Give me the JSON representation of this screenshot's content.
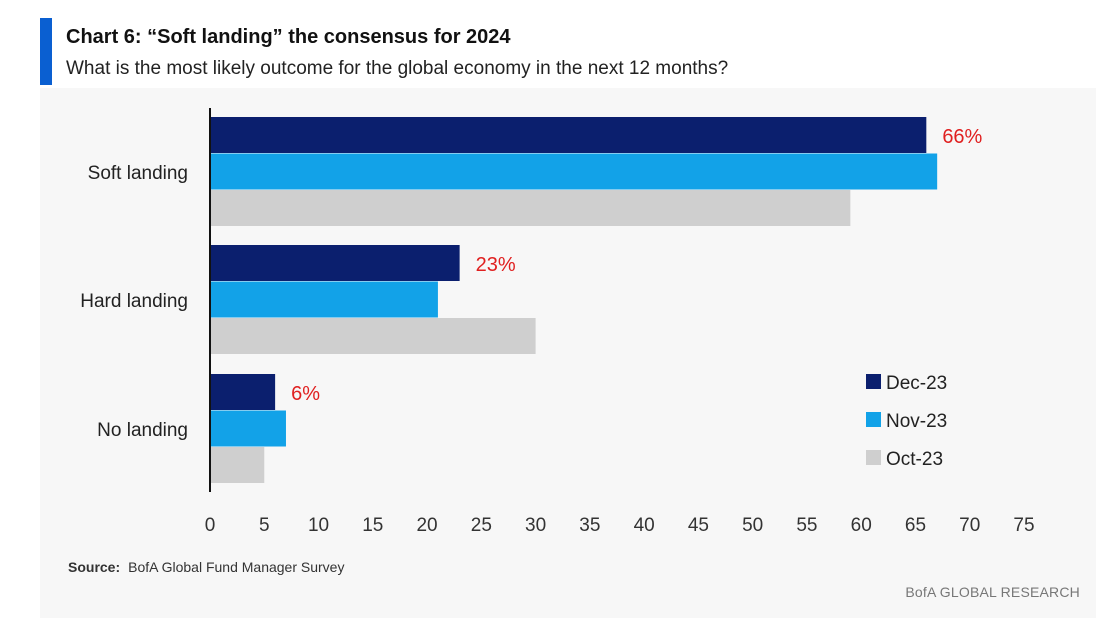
{
  "header": {
    "title": "Chart 6: “Soft landing” the consensus for 2024",
    "subtitle": "What is the most likely outcome for the global economy in the next 12 months?"
  },
  "footer": {
    "source_label": "Source:",
    "source_text": "BofA Global Fund Manager Survey",
    "brand": "BofA GLOBAL RESEARCH"
  },
  "colors": {
    "accent": "#0a5fd1",
    "Dec-23": "#0b1f6e",
    "Nov-23": "#12a2e8",
    "Oct-23": "#cfcfcf",
    "annotation": "#e02020"
  },
  "chart_data": {
    "type": "bar",
    "orientation": "horizontal",
    "categories": [
      "Soft landing",
      "Hard landing",
      "No landing"
    ],
    "series": [
      {
        "name": "Dec-23",
        "values": [
          66,
          23,
          6
        ]
      },
      {
        "name": "Nov-23",
        "values": [
          67,
          21,
          7
        ]
      },
      {
        "name": "Oct-23",
        "values": [
          59,
          30,
          5
        ]
      }
    ],
    "annotations": [
      "66%",
      "23%",
      "6%"
    ],
    "xlim": [
      0,
      75
    ],
    "xticks": [
      0,
      5,
      10,
      15,
      20,
      25,
      30,
      35,
      40,
      45,
      50,
      55,
      60,
      65,
      70,
      75
    ],
    "grid": false,
    "legend_position": "bottom-right"
  }
}
